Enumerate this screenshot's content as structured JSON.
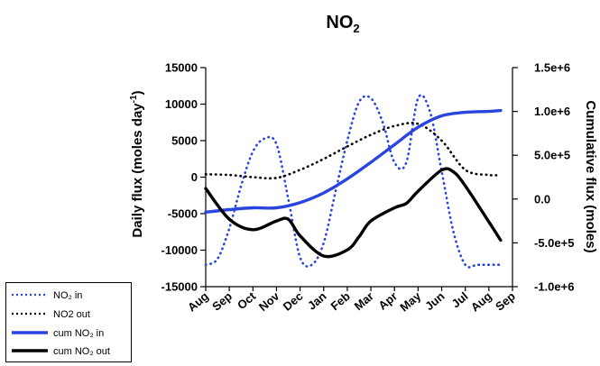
{
  "chart_data": {
    "type": "line",
    "title": "NO",
    "title_sub": "2",
    "x_ticks": [
      "Aug",
      "Sep",
      "Oct",
      "Nov",
      "Dec",
      "Jan",
      "Feb",
      "Mar",
      "Apr",
      "May",
      "Jun",
      "Jul",
      "Aug",
      "Sep"
    ],
    "ylabel_left": "Daily flux (moles day",
    "ylabel_left_sup": "-1",
    "ylabel_left_end": ")",
    "ylabel_right": "Cumulative flux (moles)",
    "ylim_left": [
      -15000,
      15000
    ],
    "ylim_right": [
      -1000000,
      1500000
    ],
    "y_ticks_left": [
      15000,
      10000,
      5000,
      0,
      -5000,
      -10000,
      -15000
    ],
    "y_ticks_left_labels": [
      "15000",
      "10000",
      "5000",
      "0",
      "-5000",
      "-10000",
      "-15000"
    ],
    "y_ticks_right": [
      1500000,
      1000000,
      500000,
      0,
      -500000,
      -1000000
    ],
    "y_ticks_right_labels": [
      "1.5e+6",
      "1.0e+6",
      "5.0e+5",
      "0.0",
      "-5.0e+5",
      "-1.0e+6"
    ],
    "grid": false,
    "legend_position": "bottom-left",
    "series": [
      {
        "name": "NO₂ in",
        "axis": "left",
        "color": "#2a44e0",
        "style": "dotted",
        "x": [
          0,
          0.5,
          1,
          1.5,
          2,
          2.5,
          3,
          3.5,
          4,
          4.5,
          5,
          5.5,
          6,
          6.5,
          7,
          7.5,
          8,
          8.5,
          9,
          9.5,
          10,
          10.5,
          11,
          11.5,
          12,
          12.5
        ],
        "y": [
          -12000,
          -11200,
          -7000,
          -1200,
          3500,
          5300,
          4500,
          -3000,
          -11000,
          -12000,
          -9000,
          -2000,
          5000,
          10300,
          10800,
          7500,
          2000,
          2000,
          10800,
          9000,
          800,
          -7500,
          -12000,
          -12000,
          -12000,
          -12000
        ]
      },
      {
        "name": "NO2 out",
        "axis": "left",
        "color": "#000000",
        "style": "dotted",
        "x": [
          0,
          1,
          2,
          3,
          4,
          5,
          6,
          7,
          8,
          9,
          10,
          11,
          12,
          12.5
        ],
        "y": [
          400,
          300,
          0,
          -100,
          1000,
          2500,
          4200,
          5800,
          7000,
          7300,
          5000,
          1000,
          300,
          300
        ]
      },
      {
        "name": "cum NO₂ in",
        "axis": "right",
        "color": "#2a44e0",
        "style": "solid",
        "x": [
          0,
          1,
          2,
          3,
          4,
          5,
          6,
          7,
          8,
          9,
          10,
          11,
          12,
          12.5
        ],
        "y": [
          -150000,
          -120000,
          -100000,
          -100000,
          -40000,
          70000,
          230000,
          420000,
          620000,
          820000,
          950000,
          990000,
          1000000,
          1010000
        ]
      },
      {
        "name": "cum NO₂ out",
        "axis": "right",
        "color": "#000000",
        "style": "solid",
        "x": [
          0,
          1,
          2,
          3,
          3.5,
          4,
          5,
          6,
          6.5,
          7,
          8,
          8.5,
          9,
          10,
          10.5,
          11,
          12,
          12.5
        ],
        "y": [
          120000,
          -230000,
          -350000,
          -250000,
          -230000,
          -420000,
          -650000,
          -580000,
          -430000,
          -250000,
          -100000,
          -50000,
          90000,
          330000,
          310000,
          150000,
          -260000,
          -470000
        ]
      }
    ]
  }
}
